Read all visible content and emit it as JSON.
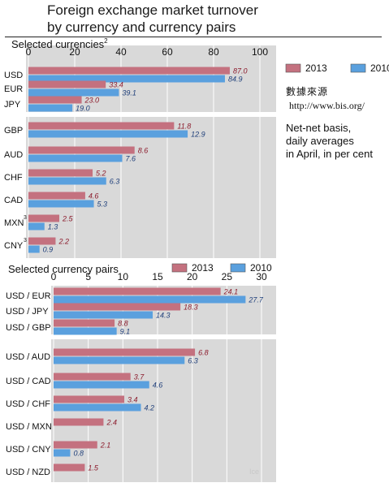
{
  "title": {
    "line1": "Foreign exchange market turnover",
    "line2": "by currency and currency pairs"
  },
  "source_note": {
    "label": "數據來源",
    "url": "http://www.bis.org/"
  },
  "basis_note": [
    "Net-net basis,",
    "daily averages",
    "in April, in per cent"
  ],
  "watermark": "Ice",
  "colors": {
    "y2013": "#c4717f",
    "y2010": "#5aa0de",
    "panel": "#d9d9d9",
    "label2013": "#8b1a2b",
    "label2010": "#1f3f7a"
  },
  "chart_data": [
    {
      "type": "bar",
      "orientation": "horizontal",
      "title": "Selected currencies",
      "title_footnote": "2",
      "xlim": [
        0,
        100
      ],
      "xticks": [
        0,
        20,
        40,
        60,
        80,
        100
      ],
      "legend": {
        "placement": "right",
        "entries": [
          "2013",
          "2010"
        ]
      },
      "categories": [
        "USD",
        "EUR",
        "JPY",
        "GBP",
        "AUD",
        "CHF",
        "CAD",
        "MXN",
        "CNY"
      ],
      "category_footnotes": {
        "MXN": "3",
        "CNY": "3"
      },
      "series": [
        {
          "name": "2013",
          "values": [
            87.0,
            33.4,
            23.0,
            11.8,
            8.6,
            5.2,
            4.6,
            2.5,
            2.2
          ]
        },
        {
          "name": "2010",
          "values": [
            84.9,
            39.1,
            19.0,
            12.9,
            7.6,
            6.3,
            5.3,
            1.3,
            0.9
          ]
        }
      ],
      "value_labels": {
        "2013": [
          "87.0",
          "33.4",
          "23.0",
          "11.8",
          "8.6",
          "5.2",
          "4.6",
          "2.5",
          "2.2"
        ],
        "2010": [
          "84.9",
          "39.1",
          "19.0",
          "12.9",
          "7.6",
          "6.3",
          "5.3",
          "1.3",
          "0.9"
        ]
      },
      "secondary_scale_from_index": 3,
      "secondary_scale_max": 15
    },
    {
      "type": "bar",
      "orientation": "horizontal",
      "title": "Selected currency pairs",
      "xlim": [
        0,
        30
      ],
      "xticks": [
        0,
        5,
        10,
        15,
        20,
        25,
        30
      ],
      "legend": {
        "placement": "top",
        "entries": [
          "2013",
          "2010"
        ]
      },
      "categories": [
        "USD / EUR",
        "USD / JPY",
        "USD / GBP",
        "USD / AUD",
        "USD / CAD",
        "USD / CHF",
        "USD / MXN",
        "USD / CNY",
        "USD / NZD"
      ],
      "series": [
        {
          "name": "2013",
          "values": [
            24.1,
            18.3,
            8.8,
            6.8,
            3.7,
            3.4,
            2.4,
            2.1,
            1.5
          ]
        },
        {
          "name": "2010",
          "values": [
            27.7,
            14.3,
            9.1,
            6.3,
            4.6,
            4.2,
            null,
            0.8,
            null
          ]
        }
      ],
      "value_labels": {
        "2013": [
          "24.1",
          "18.3",
          "8.8",
          "6.8",
          "3.7",
          "3.4",
          "2.4",
          "2.1",
          "1.5"
        ],
        "2010": [
          "27.7",
          "14.3",
          "9.1",
          "6.3",
          "4.6",
          "4.2",
          null,
          "0.8",
          null
        ]
      },
      "secondary_scale_from_index": 3,
      "secondary_scale_max": 8
    }
  ]
}
